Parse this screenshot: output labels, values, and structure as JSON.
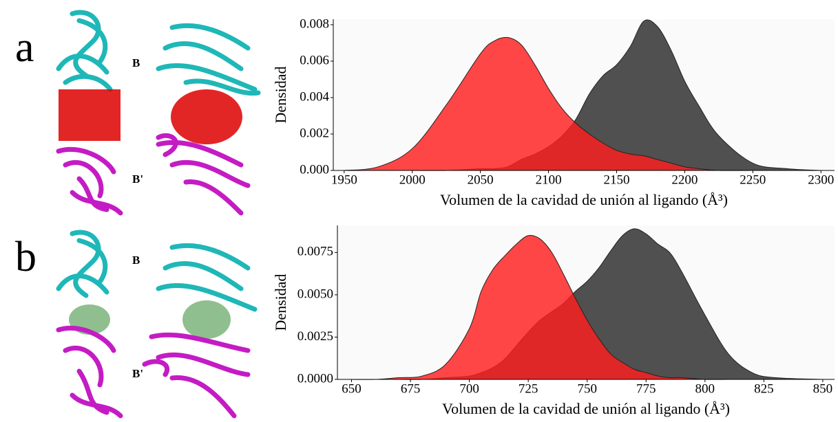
{
  "panels": [
    {
      "label": "a",
      "chains": [
        "B",
        "B'"
      ]
    },
    {
      "label": "b",
      "chains": [
        "B",
        "B'"
      ]
    }
  ],
  "chart_data": [
    {
      "type": "area",
      "xlabel": "Volumen de la cavidad de unión al ligando (Å³)",
      "ylabel": "Densidad",
      "x": [
        1950,
        1975,
        2000,
        2025,
        2050,
        2060,
        2070,
        2080,
        2090,
        2100,
        2110,
        2120,
        2130,
        2140,
        2150,
        2160,
        2170,
        2180,
        2190,
        2200,
        2210,
        2225,
        2250,
        2275,
        2300
      ],
      "series": [
        {
          "color": "#2b2b2b",
          "values": [
            0,
            0,
            0,
            0,
            0.0001,
            0.0001,
            0.0002,
            0.0006,
            0.0009,
            0.0013,
            0.0019,
            0.0028,
            0.0042,
            0.0052,
            0.0058,
            0.0068,
            0.0082,
            0.0079,
            0.0066,
            0.0049,
            0.0036,
            0.0019,
            0.0004,
            0.0001,
            0
          ]
        },
        {
          "color": "#ff1f1f",
          "values": [
            0,
            0.0002,
            0.0012,
            0.0036,
            0.0064,
            0.0071,
            0.0073,
            0.0069,
            0.0058,
            0.0045,
            0.0034,
            0.0026,
            0.002,
            0.0015,
            0.0011,
            0.0009,
            0.0008,
            0.0006,
            0.0004,
            0.0002,
            0.0001,
            0,
            0,
            0,
            0
          ]
        }
      ],
      "xlim": [
        1942,
        2310
      ],
      "ylim": [
        0,
        0.0083
      ],
      "xticks": [
        1950,
        2000,
        2050,
        2100,
        2150,
        2200,
        2250,
        2300
      ],
      "yticks": [
        {
          "value": 0,
          "label": "0.000"
        },
        0.002,
        0.004,
        0.006,
        0.008
      ]
    },
    {
      "type": "area",
      "xlabel": "Volumen de la cavidad de unión al ligando (Å³)",
      "ylabel": "Densidad",
      "x": [
        650,
        660,
        670,
        680,
        690,
        700,
        705,
        710,
        715,
        720,
        725,
        730,
        735,
        740,
        745,
        750,
        755,
        760,
        765,
        770,
        775,
        780,
        785,
        790,
        800,
        810,
        820,
        830,
        850
      ],
      "series": [
        {
          "color": "#2b2b2b",
          "values": [
            0,
            0,
            0,
            0,
            0.0001,
            0.0002,
            0.0004,
            0.0007,
            0.0012,
            0.002,
            0.0028,
            0.0035,
            0.004,
            0.0045,
            0.0052,
            0.0058,
            0.0066,
            0.0076,
            0.0085,
            0.0089,
            0.0086,
            0.008,
            0.0075,
            0.0064,
            0.0038,
            0.0015,
            0.0004,
            0.0001,
            0
          ]
        },
        {
          "color": "#ff1f1f",
          "values": [
            0,
            0,
            0.0001,
            0.0002,
            0.0009,
            0.003,
            0.0052,
            0.0065,
            0.0073,
            0.008,
            0.0085,
            0.0083,
            0.0075,
            0.0062,
            0.0048,
            0.0035,
            0.0024,
            0.0015,
            0.001,
            0.0006,
            0.0004,
            0.0002,
            0.0001,
            0.0001,
            0,
            0,
            0,
            0,
            0
          ]
        }
      ],
      "xlim": [
        644,
        855
      ],
      "ylim": [
        0,
        0.0091
      ],
      "xticks": [
        650,
        675,
        700,
        725,
        750,
        775,
        800,
        825,
        850
      ],
      "yticks": [
        {
          "value": 0,
          "label": "0.0000"
        },
        0.0025,
        {
          "value": 0.005,
          "label": "0.0050"
        },
        0.0075
      ]
    }
  ]
}
